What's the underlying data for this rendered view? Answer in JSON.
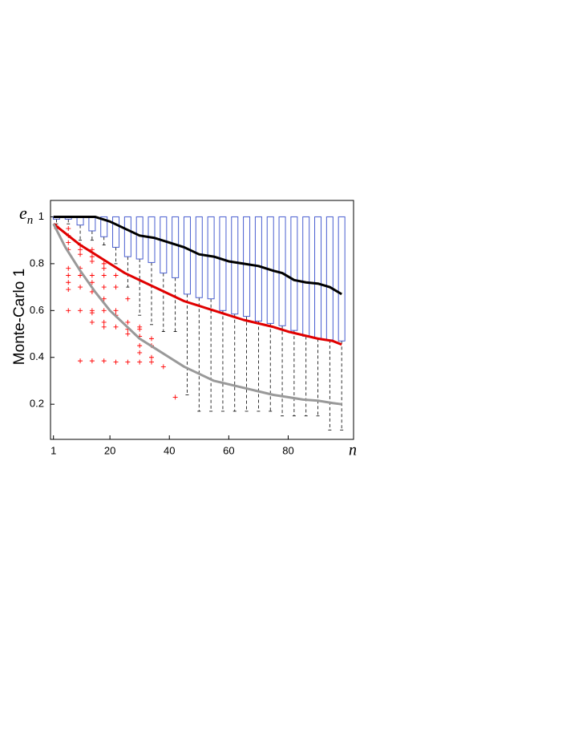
{
  "chart_data": {
    "type": "box",
    "ylabel": "Monte-Carlo 1",
    "y_symbol": "e",
    "y_symbol_subscript": "n",
    "xlabel": "n",
    "xlim": [
      0,
      102
    ],
    "ylim": [
      0.05,
      1.07
    ],
    "xticks": [
      1,
      20,
      40,
      60,
      80
    ],
    "yticks": [
      0.2,
      0.4,
      0.6,
      0.8,
      1
    ],
    "box_color": "#4a5fd0",
    "whisker_color": "#000000",
    "outlier_color": "#ff0000",
    "boxes": {
      "positions": [
        2,
        6,
        10,
        14,
        18,
        22,
        26,
        30,
        34,
        38,
        42,
        46,
        50,
        54,
        58,
        62,
        66,
        70,
        74,
        78,
        82,
        86,
        90,
        94,
        98
      ],
      "q1": [
        0.99,
        0.99,
        0.965,
        0.94,
        0.915,
        0.87,
        0.83,
        0.82,
        0.805,
        0.76,
        0.74,
        0.67,
        0.655,
        0.65,
        0.6,
        0.585,
        0.575,
        0.555,
        0.545,
        0.535,
        0.515,
        0.49,
        0.48,
        0.475,
        0.47
      ],
      "q3": [
        1,
        1,
        1,
        1,
        1,
        1,
        1,
        1,
        1,
        1,
        1,
        1,
        1,
        1,
        1,
        1,
        1,
        1,
        1,
        1,
        1,
        1,
        1,
        1,
        1
      ],
      "whisker_low": [
        0.97,
        0.97,
        0.9,
        0.9,
        0.88,
        0.8,
        0.7,
        0.58,
        0.54,
        0.51,
        0.51,
        0.24,
        0.17,
        0.17,
        0.17,
        0.17,
        0.17,
        0.17,
        0.17,
        0.15,
        0.15,
        0.15,
        0.15,
        0.09,
        0.09
      ],
      "outliers": [
        [
          0.96,
          0.95
        ],
        [
          0.95,
          0.92,
          0.89,
          0.86,
          0.78,
          0.75,
          0.72,
          0.69,
          0.6
        ],
        [
          0.88,
          0.86,
          0.84,
          0.78,
          0.75,
          0.7,
          0.6,
          0.385
        ],
        [
          0.86,
          0.83,
          0.81,
          0.75,
          0.72,
          0.68,
          0.6,
          0.59,
          0.55,
          0.385
        ],
        [
          0.8,
          0.78,
          0.75,
          0.7,
          0.65,
          0.6,
          0.55,
          0.53,
          0.385
        ],
        [
          0.75,
          0.7,
          0.6,
          0.58,
          0.53,
          0.38
        ],
        [
          0.65,
          0.55,
          0.52,
          0.5,
          0.38
        ],
        [
          0.53,
          0.52,
          0.49,
          0.45,
          0.42,
          0.38
        ],
        [
          0.48,
          0.45,
          0.4,
          0.38
        ],
        [
          0.36
        ],
        [
          0.23
        ],
        [],
        [],
        [],
        [],
        [],
        [],
        [],
        [],
        [],
        [],
        [],
        [],
        [],
        []
      ]
    },
    "series": [
      {
        "color": "#000000",
        "x": [
          1,
          5,
          10,
          15,
          20,
          25,
          30,
          35,
          40,
          45,
          50,
          55,
          60,
          65,
          70,
          75,
          78,
          82,
          86,
          90,
          94,
          98
        ],
        "values": [
          1,
          1,
          1,
          1,
          0.98,
          0.95,
          0.92,
          0.91,
          0.89,
          0.87,
          0.84,
          0.83,
          0.81,
          0.8,
          0.79,
          0.77,
          0.76,
          0.73,
          0.72,
          0.715,
          0.7,
          0.67
        ]
      },
      {
        "color": "#e00000",
        "x": [
          1,
          5,
          10,
          15,
          20,
          25,
          30,
          35,
          40,
          45,
          50,
          55,
          60,
          65,
          70,
          75,
          80,
          85,
          90,
          95,
          98
        ],
        "values": [
          0.97,
          0.93,
          0.88,
          0.84,
          0.8,
          0.76,
          0.73,
          0.7,
          0.67,
          0.64,
          0.62,
          0.6,
          0.58,
          0.56,
          0.545,
          0.53,
          0.51,
          0.495,
          0.48,
          0.47,
          0.455
        ]
      },
      {
        "color": "#999999",
        "x": [
          1,
          5,
          10,
          15,
          20,
          25,
          30,
          35,
          40,
          45,
          50,
          55,
          60,
          65,
          70,
          75,
          80,
          85,
          90,
          95,
          98
        ],
        "values": [
          0.97,
          0.87,
          0.77,
          0.68,
          0.6,
          0.54,
          0.48,
          0.44,
          0.4,
          0.36,
          0.33,
          0.3,
          0.285,
          0.27,
          0.255,
          0.24,
          0.23,
          0.22,
          0.215,
          0.205,
          0.2
        ]
      }
    ]
  }
}
